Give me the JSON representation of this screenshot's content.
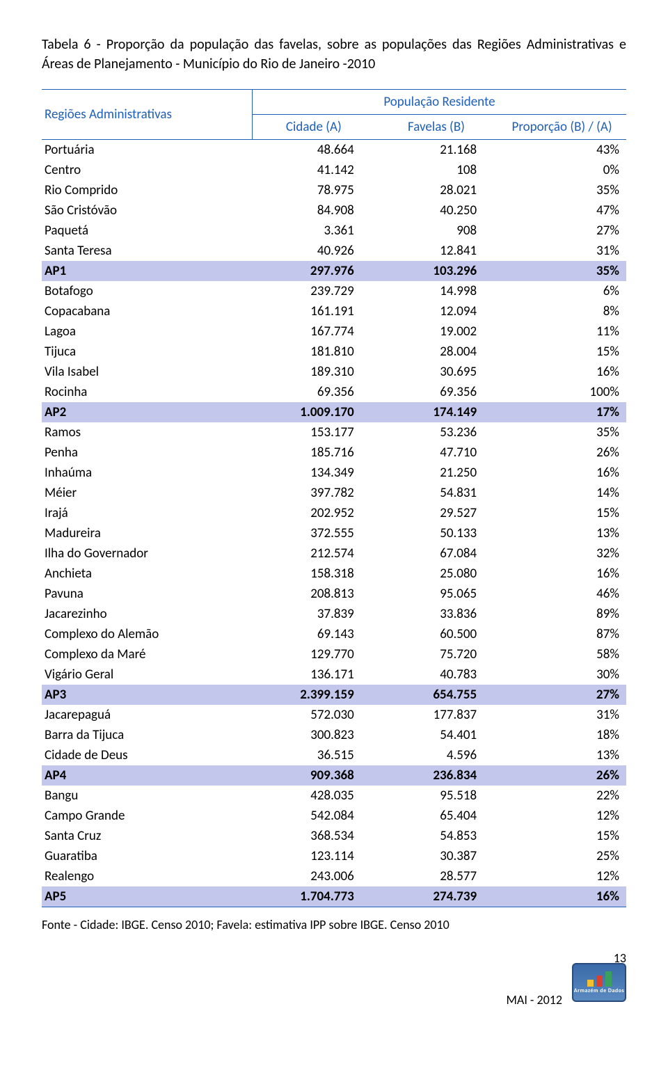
{
  "caption": "Tabela 6 - Proporção da população das favelas, sobre as populações das Regiões Administrativas e Áreas de Planejamento - Município do Rio de Janeiro -2010",
  "headers": {
    "rowhdr": "Regiões Administrativas",
    "group": "População Residente",
    "col_a": "Cidade (A)",
    "col_b": "Favelas (B)",
    "col_c": "Proporção (B) / (A)"
  },
  "rows": [
    {
      "region": "Portuária",
      "a": "48.664",
      "b": "21.168",
      "p": "43%",
      "ap": false
    },
    {
      "region": "Centro",
      "a": "41.142",
      "b": "108",
      "p": "0%",
      "ap": false
    },
    {
      "region": "Rio Comprido",
      "a": "78.975",
      "b": "28.021",
      "p": "35%",
      "ap": false
    },
    {
      "region": "São Cristóvão",
      "a": "84.908",
      "b": "40.250",
      "p": "47%",
      "ap": false
    },
    {
      "region": "Paquetá",
      "a": "3.361",
      "b": "908",
      "p": "27%",
      "ap": false
    },
    {
      "region": "Santa Teresa",
      "a": "40.926",
      "b": "12.841",
      "p": "31%",
      "ap": false
    },
    {
      "region": "AP1",
      "a": "297.976",
      "b": "103.296",
      "p": "35%",
      "ap": true
    },
    {
      "region": "Botafogo",
      "a": "239.729",
      "b": "14.998",
      "p": "6%",
      "ap": false
    },
    {
      "region": "Copacabana",
      "a": "161.191",
      "b": "12.094",
      "p": "8%",
      "ap": false
    },
    {
      "region": "Lagoa",
      "a": "167.774",
      "b": "19.002",
      "p": "11%",
      "ap": false
    },
    {
      "region": "Tijuca",
      "a": "181.810",
      "b": "28.004",
      "p": "15%",
      "ap": false
    },
    {
      "region": "Vila Isabel",
      "a": "189.310",
      "b": "30.695",
      "p": "16%",
      "ap": false
    },
    {
      "region": "Rocinha",
      "a": "69.356",
      "b": "69.356",
      "p": "100%",
      "ap": false
    },
    {
      "region": "AP2",
      "a": "1.009.170",
      "b": "174.149",
      "p": "17%",
      "ap": true
    },
    {
      "region": "Ramos",
      "a": "153.177",
      "b": "53.236",
      "p": "35%",
      "ap": false
    },
    {
      "region": "Penha",
      "a": "185.716",
      "b": "47.710",
      "p": "26%",
      "ap": false
    },
    {
      "region": "Inhaúma",
      "a": "134.349",
      "b": "21.250",
      "p": "16%",
      "ap": false
    },
    {
      "region": "Méier",
      "a": "397.782",
      "b": "54.831",
      "p": "14%",
      "ap": false
    },
    {
      "region": "Irajá",
      "a": "202.952",
      "b": "29.527",
      "p": "15%",
      "ap": false
    },
    {
      "region": "Madureira",
      "a": "372.555",
      "b": "50.133",
      "p": "13%",
      "ap": false
    },
    {
      "region": "Ilha do Governador",
      "a": "212.574",
      "b": "67.084",
      "p": "32%",
      "ap": false
    },
    {
      "region": "Anchieta",
      "a": "158.318",
      "b": "25.080",
      "p": "16%",
      "ap": false
    },
    {
      "region": "Pavuna",
      "a": "208.813",
      "b": "95.065",
      "p": "46%",
      "ap": false
    },
    {
      "region": "Jacarezinho",
      "a": "37.839",
      "b": "33.836",
      "p": "89%",
      "ap": false
    },
    {
      "region": "Complexo do Alemão",
      "a": "69.143",
      "b": "60.500",
      "p": "87%",
      "ap": false
    },
    {
      "region": "Complexo da Maré",
      "a": "129.770",
      "b": "75.720",
      "p": "58%",
      "ap": false
    },
    {
      "region": "Vigário Geral",
      "a": "136.171",
      "b": "40.783",
      "p": "30%",
      "ap": false
    },
    {
      "region": "AP3",
      "a": "2.399.159",
      "b": "654.755",
      "p": "27%",
      "ap": true
    },
    {
      "region": "Jacarepaguá",
      "a": "572.030",
      "b": "177.837",
      "p": "31%",
      "ap": false
    },
    {
      "region": "Barra da Tijuca",
      "a": "300.823",
      "b": "54.401",
      "p": "18%",
      "ap": false
    },
    {
      "region": "Cidade de Deus",
      "a": "36.515",
      "b": "4.596",
      "p": "13%",
      "ap": false
    },
    {
      "region": "AP4",
      "a": "909.368",
      "b": "236.834",
      "p": "26%",
      "ap": true
    },
    {
      "region": "Bangu",
      "a": "428.035",
      "b": "95.518",
      "p": "22%",
      "ap": false
    },
    {
      "region": "Campo Grande",
      "a": "542.084",
      "b": "65.404",
      "p": "12%",
      "ap": false
    },
    {
      "region": "Santa Cruz",
      "a": "368.534",
      "b": "54.853",
      "p": "15%",
      "ap": false
    },
    {
      "region": "Guaratiba",
      "a": "123.114",
      "b": "30.387",
      "p": "25%",
      "ap": false
    },
    {
      "region": "Realengo",
      "a": "243.006",
      "b": "28.577",
      "p": "12%",
      "ap": false
    },
    {
      "region": "AP5",
      "a": "1.704.773",
      "b": "274.739",
      "p": "16%",
      "ap": true
    }
  ],
  "source": "Fonte - Cidade: IBGE. Censo 2010;  Favela: estimativa IPP sobre IBGE. Censo 2010",
  "footer": {
    "pagenum": "13",
    "mai": "MAI - 2012",
    "logo_label": "Armazém de Dados"
  },
  "colors": {
    "header_text": "#1f5fb8",
    "header_border": "#1f5fb8",
    "ap_bg": "#c3c7ec"
  }
}
